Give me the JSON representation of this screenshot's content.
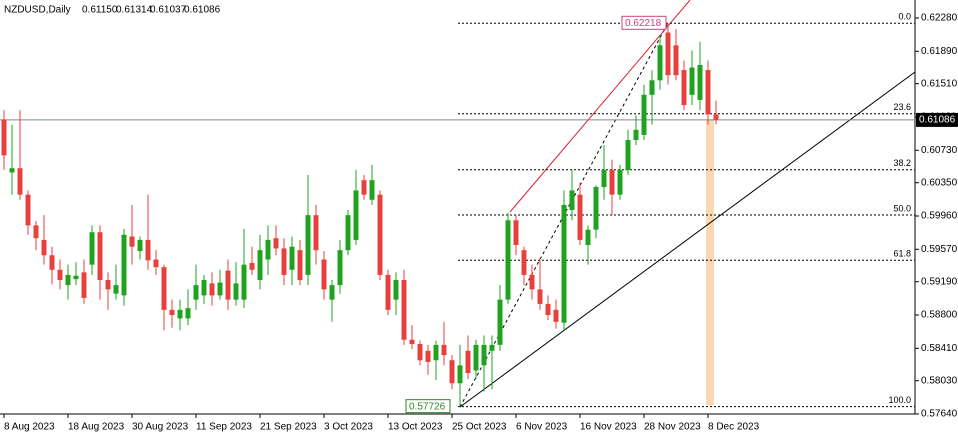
{
  "chart_data": {
    "type": "candlestick",
    "header": {
      "symbol": "NZDUSD,Daily",
      "ohlc": [
        "0.61150",
        "0.61314",
        "0.61037",
        "0.61086"
      ]
    },
    "categories": [
      "8 Aug 2023",
      null,
      null,
      null,
      null,
      null,
      null,
      null,
      "18 Aug 2023",
      null,
      null,
      null,
      null,
      null,
      null,
      null,
      "30 Aug 2023",
      null,
      null,
      null,
      null,
      null,
      null,
      null,
      "11 Sep 2023",
      null,
      null,
      null,
      null,
      null,
      null,
      null,
      "21 Sep 2023",
      null,
      null,
      null,
      null,
      null,
      null,
      null,
      "3 Oct 2023",
      null,
      null,
      null,
      null,
      null,
      null,
      null,
      "13 Oct 2023",
      null,
      null,
      null,
      null,
      null,
      null,
      null,
      "25 Oct 2023",
      null,
      null,
      null,
      null,
      null,
      null,
      null,
      "6 Nov 2023",
      null,
      null,
      null,
      null,
      null,
      null,
      null,
      "16 Nov 2023",
      null,
      null,
      null,
      null,
      null,
      null,
      null,
      "28 Nov 2023",
      null,
      null,
      null,
      null,
      null,
      null,
      null,
      "8 Dec 2023",
      null
    ],
    "open": [
      0.6109,
      0.6047,
      0.6052,
      0.6021,
      0.5985,
      0.5968,
      0.595,
      0.5933,
      0.5915,
      0.5922,
      0.593,
      0.5939,
      0.5977,
      0.5921,
      0.5905,
      0.5903,
      0.5972,
      0.5955,
      0.5968,
      0.5945,
      0.5936,
      0.5886,
      0.5876,
      0.5876,
      0.5898,
      0.5903,
      0.5917,
      0.5903,
      0.5932,
      0.5898,
      0.5898,
      0.5941,
      0.5921,
      0.5945,
      0.597,
      0.5958,
      0.5933,
      0.5956,
      0.5927,
      0.5997,
      0.5945,
      0.5898,
      0.5915,
      0.5956,
      0.5968,
      0.6038,
      0.6015,
      0.6021,
      0.5927,
      0.5898,
      0.5921,
      0.5851,
      0.5846,
      0.5838,
      0.5827,
      0.5845,
      0.5827,
      0.58,
      0.5838,
      0.5815,
      0.5821,
      0.5838,
      0.5845,
      0.5898,
      0.5991,
      0.5956,
      0.5927,
      0.591,
      0.5893,
      0.5886,
      0.5871,
      0.6003,
      0.6021,
      0.5962,
      0.598,
      0.603,
      0.605,
      0.6021,
      0.605,
      0.6085,
      0.6091,
      0.6138,
      0.6155,
      0.6211,
      0.6196,
      0.6167,
      0.6138,
      0.6132,
      0.6167,
      0.6115
    ],
    "high": [
      0.612,
      0.6103,
      0.612,
      0.6026,
      0.599,
      0.5997,
      0.596,
      0.5945,
      0.5939,
      0.5942,
      0.5945,
      0.5985,
      0.5985,
      0.593,
      0.5939,
      0.5981,
      0.6009,
      0.5972,
      0.6021,
      0.5956,
      0.5939,
      0.5898,
      0.5898,
      0.591,
      0.5939,
      0.5927,
      0.593,
      0.5933,
      0.5945,
      0.5942,
      0.5981,
      0.596,
      0.5974,
      0.5985,
      0.5985,
      0.597,
      0.5972,
      0.5968,
      0.6044,
      0.6009,
      0.5955,
      0.5921,
      0.5968,
      0.6003,
      0.605,
      0.6044,
      0.6056,
      0.6026,
      0.5933,
      0.593,
      0.5933,
      0.5868,
      0.585,
      0.5845,
      0.585,
      0.5872,
      0.5833,
      0.5845,
      0.5856,
      0.5851,
      0.5856,
      0.5856,
      0.5915,
      0.6,
      0.5997,
      0.596,
      0.5939,
      0.5947,
      0.5903,
      0.5898,
      0.6026,
      0.605,
      0.6035,
      0.5985,
      0.6032,
      0.6079,
      0.6062,
      0.6056,
      0.6097,
      0.6114,
      0.615,
      0.6167,
      0.6208,
      0.62218,
      0.6215,
      0.6178,
      0.619,
      0.62,
      0.6178,
      0.61314
    ],
    "low": [
      0.605,
      0.6021,
      0.6015,
      0.5974,
      0.5956,
      0.5939,
      0.5916,
      0.591,
      0.5898,
      0.5915,
      0.5893,
      0.5927,
      0.5898,
      0.5886,
      0.5898,
      0.5891,
      0.5939,
      0.5945,
      0.5933,
      0.5927,
      0.5862,
      0.5865,
      0.5862,
      0.5868,
      0.5886,
      0.5893,
      0.5891,
      0.5898,
      0.5886,
      0.5891,
      0.5888,
      0.5927,
      0.591,
      0.5927,
      0.595,
      0.5915,
      0.5915,
      0.5915,
      0.5915,
      0.5939,
      0.5898,
      0.5872,
      0.5905,
      0.595,
      0.5962,
      0.6015,
      0.6009,
      0.5921,
      0.588,
      0.588,
      0.5845,
      0.584,
      0.5821,
      0.581,
      0.5804,
      0.5821,
      0.5793,
      0.57726,
      0.5805,
      0.5805,
      0.579,
      0.5793,
      0.5838,
      0.5893,
      0.595,
      0.5915,
      0.5898,
      0.5886,
      0.5874,
      0.5864,
      0.5862,
      0.5991,
      0.5962,
      0.5939,
      0.597,
      0.6015,
      0.5997,
      0.6015,
      0.6044,
      0.6079,
      0.6085,
      0.6103,
      0.6144,
      0.615,
      0.6155,
      0.612,
      0.6126,
      0.612,
      0.6103,
      0.61037
    ],
    "close": [
      0.6067,
      0.6052,
      0.6021,
      0.5985,
      0.597,
      0.595,
      0.5933,
      0.5921,
      0.5927,
      0.5926,
      0.59,
      0.5977,
      0.5921,
      0.591,
      0.5915,
      0.5974,
      0.596,
      0.5968,
      0.5944,
      0.5936,
      0.5886,
      0.588,
      0.5886,
      0.5888,
      0.5915,
      0.5921,
      0.5903,
      0.5918,
      0.5898,
      0.5917,
      0.5939,
      0.5933,
      0.5956,
      0.5968,
      0.5958,
      0.5927,
      0.596,
      0.5921,
      0.5997,
      0.5956,
      0.591,
      0.5915,
      0.5956,
      0.5997,
      0.6026,
      0.6021,
      0.6038,
      0.5927,
      0.5886,
      0.5921,
      0.5851,
      0.5846,
      0.5827,
      0.5825,
      0.5845,
      0.5833,
      0.58,
      0.5821,
      0.5812,
      0.5845,
      0.5845,
      0.5845,
      0.5898,
      0.5991,
      0.5962,
      0.5927,
      0.591,
      0.5893,
      0.588,
      0.5872,
      0.6009,
      0.6026,
      0.5968,
      0.598,
      0.603,
      0.605,
      0.6021,
      0.605,
      0.6085,
      0.6097,
      0.6138,
      0.6155,
      0.6196,
      0.6161,
      0.6161,
      0.6126,
      0.617,
      0.6173,
      0.6115,
      0.61086
    ],
    "up_color": "#1fa31f",
    "down_color": "#e8403c",
    "ylim": [
      0.5764,
      0.62491
    ],
    "yticks": [
      {
        "value": 0.6228,
        "label": "0.62280"
      },
      {
        "value": 0.6189,
        "label": "0.61890"
      },
      {
        "value": 0.6151,
        "label": "0.61510"
      },
      {
        "value": 0.6112,
        "label": "0.61120"
      },
      {
        "value": 0.6073,
        "label": "0.60730"
      },
      {
        "value": 0.6035,
        "label": "0.60350"
      },
      {
        "value": 0.5996,
        "label": "0.59960"
      },
      {
        "value": 0.5957,
        "label": "0.59570"
      },
      {
        "value": 0.5919,
        "label": "0.59190"
      },
      {
        "value": 0.588,
        "label": "0.58800"
      },
      {
        "value": 0.5841,
        "label": "0.58410"
      },
      {
        "value": 0.5803,
        "label": "0.58030"
      },
      {
        "value": 0.5764,
        "label": "0.57640"
      }
    ],
    "current_price": {
      "value": 0.61086,
      "label": "0.61086"
    },
    "fibonacci": {
      "high": {
        "value": 0.62218,
        "label": "0.62218"
      },
      "low": {
        "value": 0.57726,
        "label": "0.57726"
      },
      "levels": [
        {
          "value": 0.62218,
          "label": "0.0"
        },
        {
          "value": 0.61158,
          "label": "23.6"
        },
        {
          "value": 0.60502,
          "label": "38.2"
        },
        {
          "value": 0.59972,
          "label": "50.0"
        },
        {
          "value": 0.59442,
          "label": "61.8"
        },
        {
          "value": 0.57726,
          "label": "100.0"
        }
      ]
    }
  }
}
